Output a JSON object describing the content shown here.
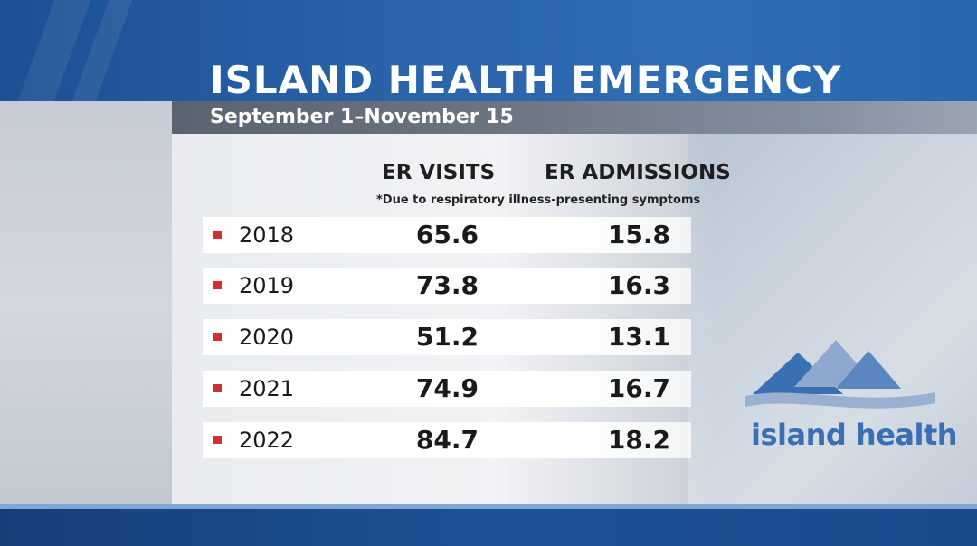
{
  "title": "ISLAND HEALTH EMERGENCY",
  "subtitle": "September 1–November 15",
  "columns": {
    "visits": "ER VISITS",
    "admissions": "ER ADMISSIONS"
  },
  "footnote": "*Due to respiratory illness-presenting symptoms",
  "rows": [
    {
      "year": "2018",
      "visits": "65.6",
      "admissions": "15.8"
    },
    {
      "year": "2019",
      "visits": "73.8",
      "admissions": "16.3"
    },
    {
      "year": "2020",
      "visits": "51.2",
      "admissions": "13.1"
    },
    {
      "year": "2021",
      "visits": "74.9",
      "admissions": "16.7"
    },
    {
      "year": "2022",
      "visits": "84.7",
      "admissions": "18.2"
    }
  ],
  "logo": {
    "text": "island health",
    "icon": "mountain-wave-logo-icon"
  },
  "colors": {
    "header_blue": "#2a63a8",
    "bullet_red": "#d0312d",
    "logo_blue": "#3b6fb3"
  }
}
